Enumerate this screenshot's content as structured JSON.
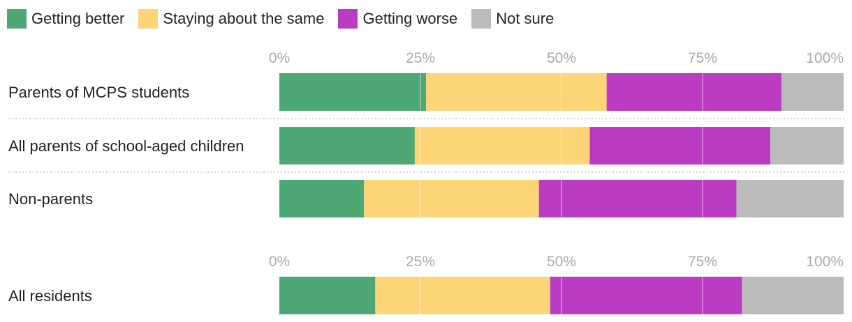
{
  "legend": [
    {
      "label": "Getting better",
      "color": "#4ea875"
    },
    {
      "label": "Staying about the same",
      "color": "#fdd577"
    },
    {
      "label": "Getting worse",
      "color": "#bb3bc3"
    },
    {
      "label": "Not sure",
      "color": "#bbbbbb"
    }
  ],
  "chart_data": [
    {
      "type": "bar",
      "orientation": "horizontal",
      "stacked": true,
      "xlim": [
        0,
        100
      ],
      "ticks": [
        "0%",
        "25%",
        "50%",
        "75%",
        "100%"
      ],
      "categories": [
        "Parents of MCPS students",
        "All parents of school-aged children",
        "Non-parents"
      ],
      "series": [
        {
          "name": "Getting better",
          "values": [
            26,
            24,
            15
          ]
        },
        {
          "name": "Staying about the same",
          "values": [
            32,
            31,
            31
          ]
        },
        {
          "name": "Getting worse",
          "values": [
            31,
            32,
            35
          ]
        },
        {
          "name": "Not sure",
          "values": [
            11,
            13,
            19
          ]
        }
      ]
    },
    {
      "type": "bar",
      "orientation": "horizontal",
      "stacked": true,
      "xlim": [
        0,
        100
      ],
      "ticks": [
        "0%",
        "25%",
        "50%",
        "75%",
        "100%"
      ],
      "categories": [
        "All residents"
      ],
      "series": [
        {
          "name": "Getting better",
          "values": [
            17
          ]
        },
        {
          "name": "Staying about the same",
          "values": [
            31
          ]
        },
        {
          "name": "Getting worse",
          "values": [
            34
          ]
        },
        {
          "name": "Not sure",
          "values": [
            18
          ]
        }
      ]
    }
  ]
}
